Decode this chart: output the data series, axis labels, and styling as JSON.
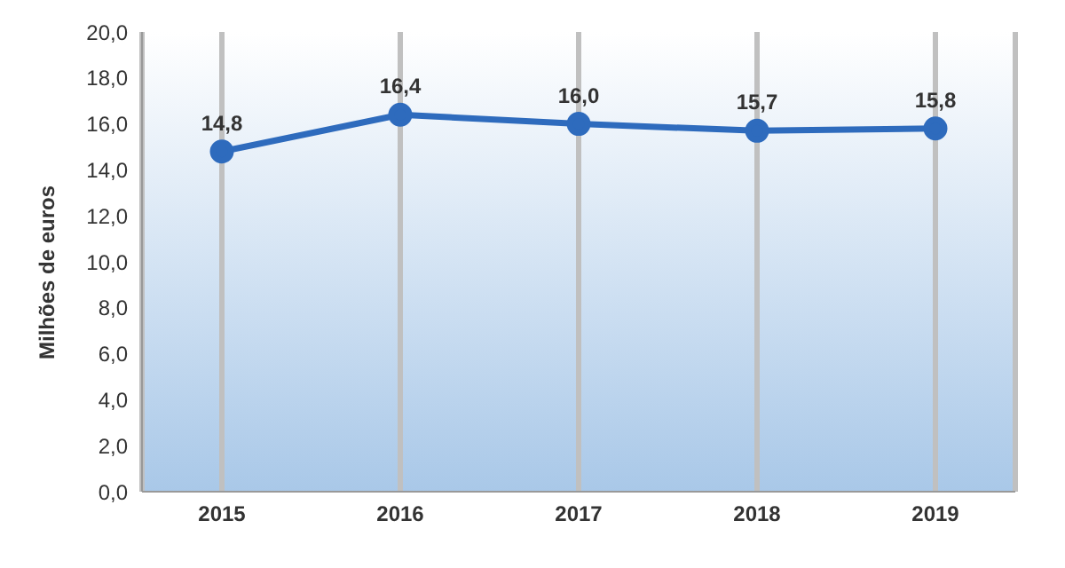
{
  "chart_data": {
    "type": "line",
    "ylabel": "Milhões de euros",
    "categories": [
      "2015",
      "2016",
      "2017",
      "2018",
      "2019"
    ],
    "series": [
      {
        "color": "#2e6bbd",
        "values": [
          14.8,
          16.4,
          16.0,
          15.7,
          15.8
        ],
        "value_labels": [
          "14,8",
          "16,4",
          "16,0",
          "15,7",
          "15,8"
        ]
      }
    ],
    "ylim": [
      0,
      20
    ],
    "yticks": [
      {
        "value": 0,
        "label": "0,0"
      },
      {
        "value": 2,
        "label": "2,0"
      },
      {
        "value": 4,
        "label": "4,0"
      },
      {
        "value": 6,
        "label": "6,0"
      },
      {
        "value": 8,
        "label": "8,0"
      },
      {
        "value": 10,
        "label": "10,0"
      },
      {
        "value": 12,
        "label": "12,0"
      },
      {
        "value": 14,
        "label": "14,0"
      },
      {
        "value": 16,
        "label": "16,0"
      },
      {
        "value": 18,
        "label": "18,0"
      },
      {
        "value": 20,
        "label": "20,0"
      }
    ],
    "grid": "x",
    "marker": "circle",
    "line_style": "solid",
    "legend": false
  }
}
